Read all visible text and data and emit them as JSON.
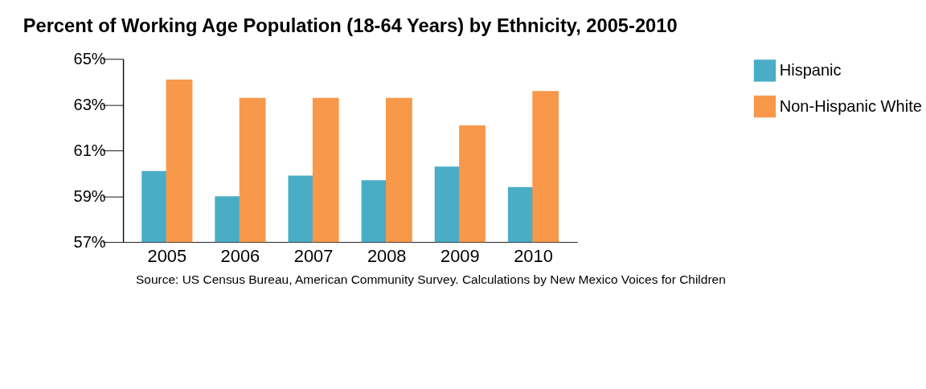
{
  "chart_data": {
    "type": "bar",
    "title": "Percent of Working Age Population (18-64 Years) by Ethnicity, 2005-2010",
    "categories": [
      "2005",
      "2006",
      "2007",
      "2008",
      "2009",
      "2010"
    ],
    "series": [
      {
        "name": "Hispanic",
        "color": "#4aadc6",
        "values": [
          60.1,
          59.0,
          59.9,
          59.7,
          60.3,
          59.4
        ]
      },
      {
        "name": "Non-Hispanic White",
        "color": "#f7984a",
        "values": [
          64.1,
          63.3,
          63.3,
          63.3,
          62.1,
          63.6
        ]
      }
    ],
    "ylim": [
      57,
      65
    ],
    "yticks": [
      {
        "value": 57,
        "label": "57%"
      },
      {
        "value": 59,
        "label": "59%"
      },
      {
        "value": 61,
        "label": "61%"
      },
      {
        "value": 63,
        "label": "63%"
      },
      {
        "value": 65,
        "label": "65%"
      }
    ],
    "grid": false,
    "legend": "right",
    "annotations": [
      "Source: US Census Bureau, American Community Survey. Calculations by New Mexico Voices for Children"
    ]
  }
}
